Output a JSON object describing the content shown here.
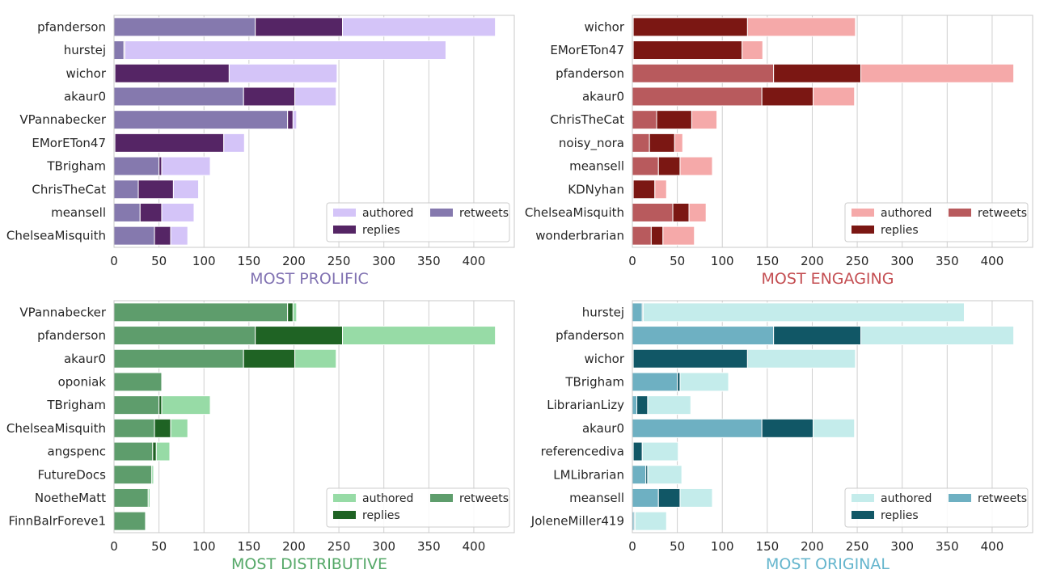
{
  "axis": {
    "xticks": [
      0,
      50,
      100,
      150,
      200,
      250,
      300,
      350,
      400
    ],
    "xlim": [
      0,
      445
    ]
  },
  "legend_labels": {
    "authored": "authored",
    "replies": "replies",
    "retweets": "retweets"
  },
  "chart_data": [
    {
      "type": "bar",
      "title": "MOST PROLIFIC",
      "colors": {
        "title": "#8172b2",
        "authored": "#d4c4f8",
        "replies": "#552565",
        "retweets": "#8579ae"
      },
      "legend_position": "lower-right",
      "categories": [
        "pfanderson",
        "hurstej",
        "wichor",
        "akaur0",
        "VPannabecker",
        "EMorETon47",
        "TBrigham",
        "ChrisTheCat",
        "meansell",
        "ChelseaMisquith"
      ],
      "series": [
        {
          "name": "retweets",
          "values": [
            157,
            11,
            1,
            144,
            193,
            1,
            50,
            27,
            29,
            45
          ]
        },
        {
          "name": "replies",
          "values": [
            97,
            1,
            127,
            57,
            6,
            121,
            3,
            39,
            24,
            18
          ]
        },
        {
          "name": "authored",
          "values": [
            170,
            357,
            120,
            46,
            4,
            23,
            54,
            28,
            36,
            19
          ]
        }
      ]
    },
    {
      "type": "bar",
      "title": "MOST ENGAGING",
      "colors": {
        "title": "#c44e52",
        "authored": "#f5a9a9",
        "replies": "#7b1713",
        "retweets": "#b85a5d"
      },
      "legend_position": "lower-right",
      "categories": [
        "wichor",
        "EMorETon47",
        "pfanderson",
        "akaur0",
        "ChrisTheCat",
        "noisy_nora",
        "meansell",
        "KDNyhan",
        "ChelseaMisquith",
        "wonderbrarian"
      ],
      "series": [
        {
          "name": "retweets",
          "values": [
            1,
            1,
            157,
            144,
            27,
            19,
            29,
            1,
            45,
            21
          ]
        },
        {
          "name": "replies",
          "values": [
            127,
            121,
            97,
            57,
            39,
            28,
            24,
            24,
            18,
            13
          ]
        },
        {
          "name": "authored",
          "values": [
            120,
            23,
            170,
            46,
            28,
            9,
            36,
            13,
            19,
            35
          ]
        }
      ]
    },
    {
      "type": "bar",
      "title": "MOST DISTRIBUTIVE",
      "colors": {
        "title": "#55a868",
        "authored": "#97dba6",
        "replies": "#1f6324",
        "retweets": "#5e9d6c"
      },
      "legend_position": "lower-right",
      "categories": [
        "VPannabecker",
        "pfanderson",
        "akaur0",
        "oponiak",
        "TBrigham",
        "ChelseaMisquith",
        "angspenc",
        "FutureDocs",
        "NoetheMatt",
        "FinnBalrForeve1"
      ],
      "series": [
        {
          "name": "retweets",
          "values": [
            193,
            157,
            144,
            53,
            50,
            45,
            43,
            42,
            38,
            35
          ]
        },
        {
          "name": "replies",
          "values": [
            6,
            97,
            57,
            0,
            3,
            18,
            4,
            0,
            0,
            0
          ]
        },
        {
          "name": "authored",
          "values": [
            4,
            170,
            46,
            0,
            54,
            19,
            15,
            2,
            2,
            0
          ]
        }
      ]
    },
    {
      "type": "bar",
      "title": "MOST ORIGINAL",
      "colors": {
        "title": "#64b5cd",
        "authored": "#c4eceb",
        "replies": "#115766",
        "retweets": "#6eb0c2"
      },
      "legend_position": "lower-right",
      "categories": [
        "hurstej",
        "pfanderson",
        "wichor",
        "TBrigham",
        "LibrarianLizy",
        "akaur0",
        "referencediva",
        "LMLibrarian",
        "meansell",
        "JoleneMiller419"
      ],
      "series": [
        {
          "name": "retweets",
          "values": [
            11,
            157,
            1,
            50,
            5,
            144,
            1,
            15,
            29,
            2
          ]
        },
        {
          "name": "replies",
          "values": [
            1,
            97,
            127,
            3,
            12,
            57,
            10,
            2,
            24,
            1
          ]
        },
        {
          "name": "authored",
          "values": [
            357,
            170,
            120,
            54,
            48,
            46,
            40,
            38,
            36,
            35
          ]
        }
      ]
    }
  ]
}
